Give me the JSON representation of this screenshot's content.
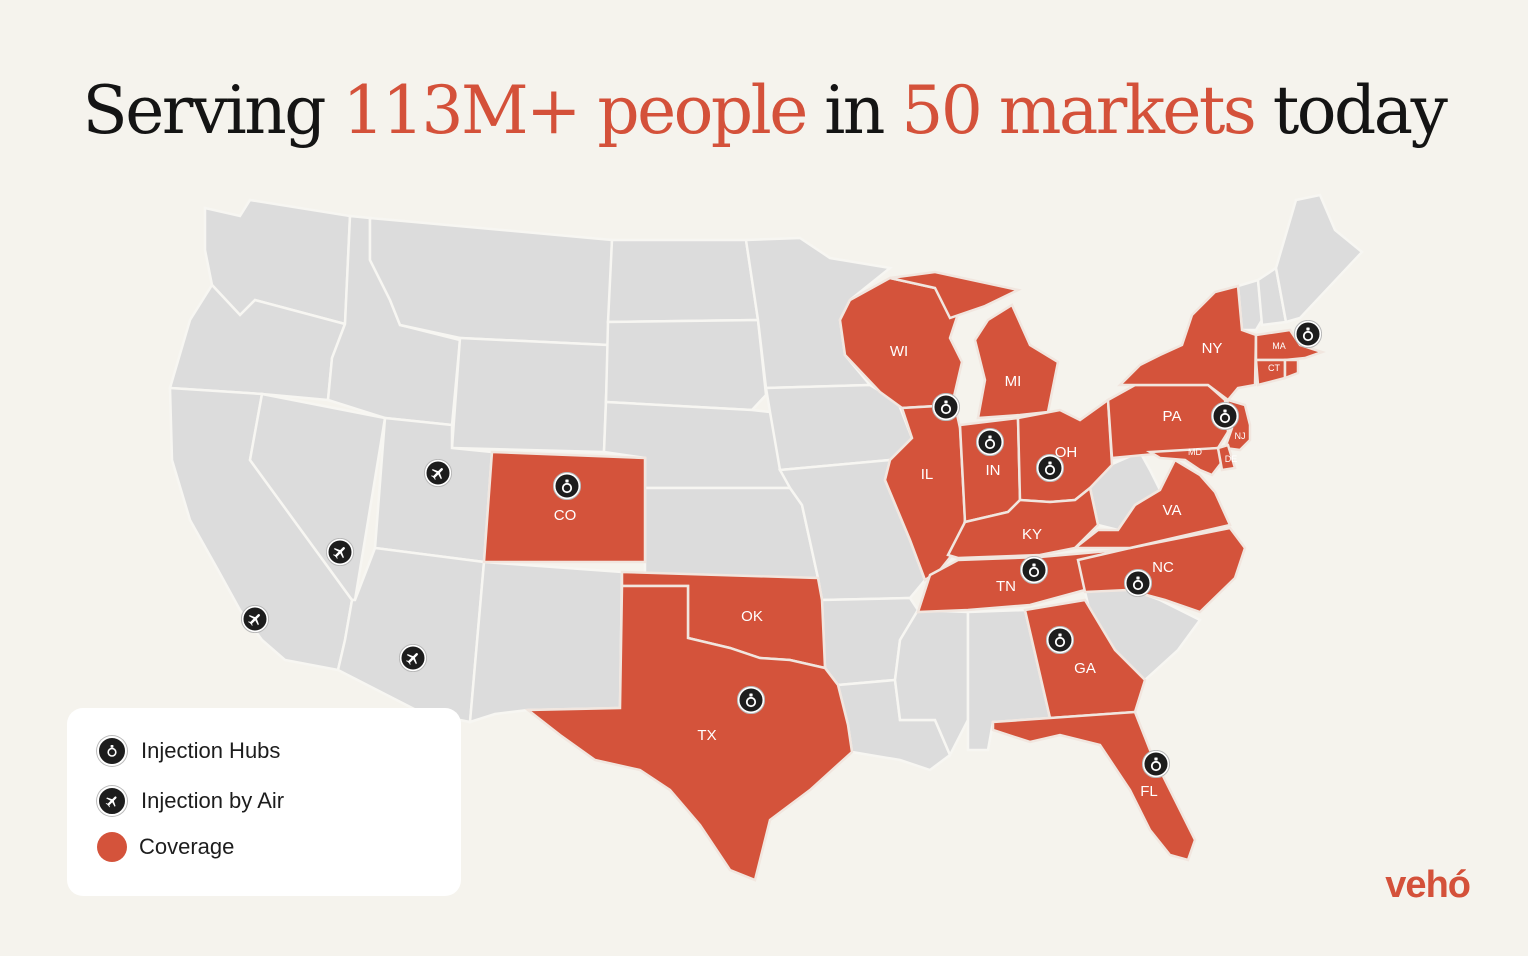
{
  "headline": {
    "part1": "Serving",
    "part2": "113M+ people",
    "part3": "in",
    "part4": "50 markets",
    "part5": "today"
  },
  "colors": {
    "accent": "#d4513a",
    "coverage": "#d4533b",
    "uncovered": "#dcdcdc",
    "background": "#f5f3ed",
    "marker": "#1d1d1d"
  },
  "state_labels": {
    "WI": "WI",
    "MI": "MI",
    "IL": "IL",
    "IN": "IN",
    "OH": "OH",
    "KY": "KY",
    "TN": "TN",
    "NC": "NC",
    "VA": "VA",
    "PA": "PA",
    "NY": "NY",
    "MA": "MA",
    "CT": "CT",
    "NJ": "NJ",
    "MD": "MD",
    "DE": "DE",
    "GA": "GA",
    "FL": "FL",
    "CO": "CO",
    "OK": "OK",
    "TX": "TX"
  },
  "legend": {
    "hubs_label": "Injection Hubs",
    "hubs_icon": "injection-hub-icon",
    "air_label": "Injection by Air",
    "air_icon": "airplane-icon",
    "coverage_label": "Coverage"
  },
  "brand": {
    "logo": "vehó"
  }
}
